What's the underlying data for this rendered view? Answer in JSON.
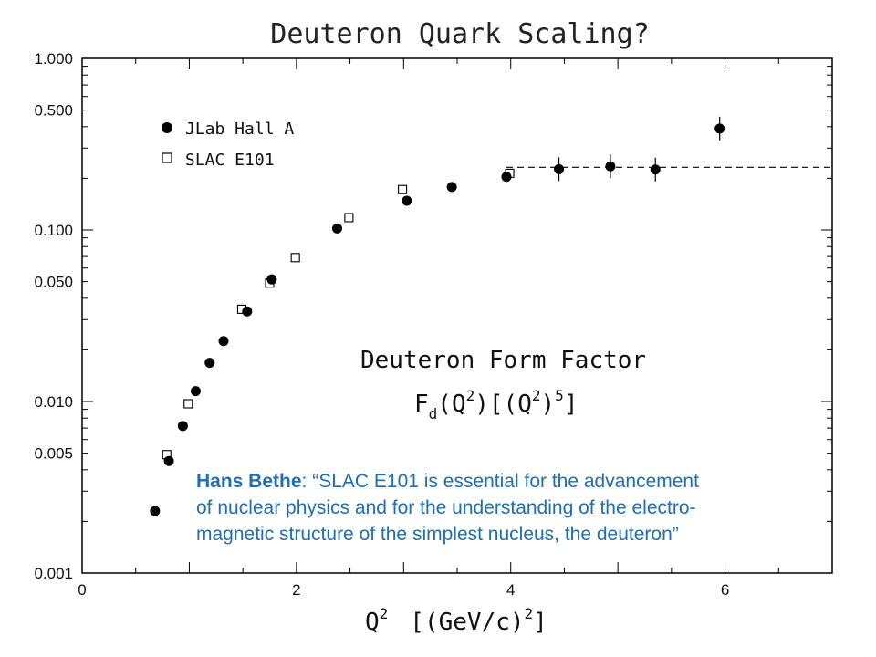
{
  "chart_data": {
    "type": "scatter",
    "title": "Deuteron Quark Scaling?",
    "xlabel": {
      "q": "Q",
      "q_exp": "2",
      "units_open": "[(GeV/c)",
      "units_exp": "2",
      "units_close": "]"
    },
    "ylabel": "",
    "y_scale": "log",
    "xlim": [
      0,
      7
    ],
    "ylim": [
      0.001,
      1.0
    ],
    "x_ticks": [
      "0",
      "2",
      "4",
      "6"
    ],
    "x_tick_values": [
      0,
      2,
      4,
      6
    ],
    "y_ticks": [
      "0.001",
      "0.005",
      "0.010",
      "0.050",
      "0.100",
      "0.500",
      "1.000"
    ],
    "y_tick_values": [
      0.001,
      0.005,
      0.01,
      0.05,
      0.1,
      0.5,
      1.0
    ],
    "legend_position": "top-left",
    "series": [
      {
        "name": "JLab Hall A",
        "marker": "filled-circle",
        "x": [
          0.68,
          0.81,
          0.94,
          1.06,
          1.19,
          1.32,
          1.54,
          1.77,
          2.38,
          3.03,
          3.45,
          3.96,
          4.45,
          4.93,
          5.35,
          5.95
        ],
        "y": [
          0.0023,
          0.0045,
          0.0072,
          0.0115,
          0.0168,
          0.0225,
          0.0335,
          0.0515,
          0.102,
          0.148,
          0.178,
          0.204,
          0.226,
          0.235,
          0.225,
          0.39
        ]
      },
      {
        "name": "SLAC E101",
        "marker": "open-square",
        "x": [
          0.79,
          0.99,
          1.49,
          1.75,
          1.99,
          2.49,
          2.99,
          3.99
        ],
        "y": [
          0.0049,
          0.0097,
          0.0345,
          0.049,
          0.069,
          0.118,
          0.172,
          0.214
        ]
      }
    ],
    "reference_line": {
      "style": "dashed",
      "x": [
        3.96,
        7.0
      ],
      "y": 0.232
    },
    "annotation": {
      "line1": "Deuteron Form Factor",
      "f": "F",
      "sub_d": "d",
      "q1": "(Q",
      "exp1": "2",
      "mid": ")[(Q",
      "exp2": "2",
      "close": ")",
      "exp3": "5",
      "end": "]"
    },
    "quote": {
      "author": "Hans Bethe",
      "line1": ": “SLAC E101 is essential for the advancement",
      "line2": "of nuclear physics and for the understanding of the electro-",
      "line3": "magnetic structure of the simplest nucleus, the deuteron”",
      "color": "#1f6fb0"
    }
  }
}
